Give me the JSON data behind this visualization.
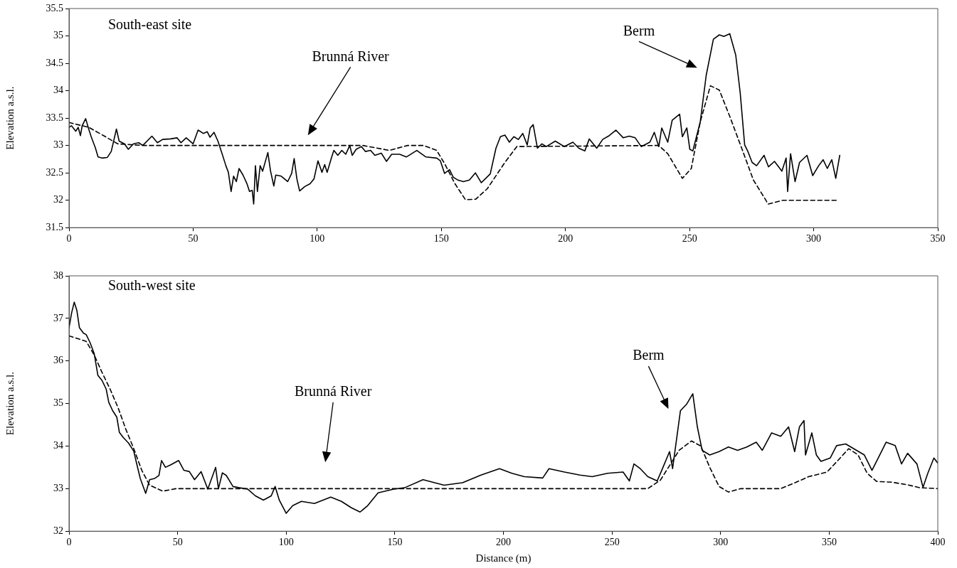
{
  "chart_data": [
    {
      "type": "line",
      "ylabel": "Elevation a.s.l.",
      "xlim": [
        0,
        350
      ],
      "xticks": [
        0,
        50,
        100,
        150,
        200,
        250,
        300,
        350
      ],
      "ylim": [
        31.5,
        35.5
      ],
      "yticks": [
        31.5,
        32,
        32.5,
        33,
        33.5,
        34,
        34.5,
        35,
        35.5
      ],
      "legend": false,
      "marker": "none",
      "annotations": [
        "South-east site",
        "Brunná River",
        "Berm"
      ],
      "series": [
        {
          "color": "#000000",
          "line_style": "solid",
          "x": [
            0,
            1,
            2.7,
            3.7,
            4.6,
            5.3,
            6.7,
            8,
            9,
            10.6,
            11.7,
            13.3,
            15.4,
            17,
            19.1,
            20.2,
            22.3,
            23.9,
            26,
            28.1,
            29.7,
            33.4,
            35.6,
            37.7,
            40.9,
            43.5,
            45.1,
            47.2,
            50,
            52,
            54.1,
            55.7,
            56.8,
            58.4,
            60,
            61.6,
            63.2,
            64.2,
            65.3,
            66.3,
            67.4,
            68.5,
            70.1,
            71.7,
            72.7,
            73.8,
            74.4,
            75.1,
            75.9,
            77,
            78,
            80.1,
            81.2,
            82.5,
            83.3,
            85.5,
            88.1,
            89.7,
            90.7,
            91.8,
            92.9,
            95,
            97.1,
            98.7,
            100.3,
            101.9,
            103,
            104,
            105.7,
            106.7,
            108.3,
            109.9,
            111.5,
            113.1,
            114.1,
            115.7,
            117.8,
            119.4,
            121.5,
            123.2,
            125.8,
            127.9,
            130,
            133.2,
            135.9,
            140.1,
            143.8,
            148.1,
            149.6,
            151.3,
            153.3,
            154.8,
            156.6,
            158.9,
            161.3,
            163.7,
            166.1,
            169.7,
            172,
            173.8,
            175.6,
            177.4,
            179.2,
            181,
            182.8,
            184.6,
            185.8,
            187,
            188.7,
            190.5,
            192.3,
            195.9,
            199.5,
            203,
            205.4,
            207.8,
            209.6,
            212.6,
            215,
            217.3,
            220.3,
            223.3,
            225.7,
            228.1,
            230.5,
            234,
            235.8,
            237.6,
            238.8,
            241.2,
            243,
            246,
            247.1,
            248.9,
            250.1,
            251.3,
            254.3,
            256.7,
            259.6,
            262,
            263.8,
            266.2,
            268.6,
            270.4,
            272.2,
            273.4,
            275.2,
            277,
            280,
            281.8,
            284.2,
            287.2,
            288.9,
            289.5,
            290.7,
            292.5,
            294.3,
            297.3,
            299.6,
            302,
            303.8,
            305.5,
            307.3,
            308.9,
            310.5
          ],
          "values": [
            33.33,
            33.36,
            33.26,
            33.33,
            33.18,
            33.36,
            33.49,
            33.29,
            33.15,
            32.96,
            32.79,
            32.77,
            32.78,
            32.89,
            33.3,
            33.08,
            33.03,
            32.93,
            33.03,
            33.05,
            33,
            33.17,
            33.05,
            33.11,
            33.12,
            33.14,
            33.05,
            33.14,
            33.03,
            33.28,
            33.22,
            33.25,
            33.15,
            33.24,
            33.08,
            32.86,
            32.63,
            32.51,
            32.16,
            32.44,
            32.34,
            32.58,
            32.46,
            32.3,
            32.16,
            32.18,
            31.93,
            32.63,
            32.16,
            32.63,
            32.53,
            32.87,
            32.53,
            32.26,
            32.46,
            32.44,
            32.34,
            32.49,
            32.76,
            32.39,
            32.17,
            32.25,
            32.3,
            32.39,
            32.72,
            32.51,
            32.65,
            32.51,
            32.77,
            32.91,
            32.82,
            32.91,
            32.84,
            33,
            32.82,
            32.93,
            32.98,
            32.89,
            32.91,
            32.82,
            32.86,
            32.71,
            32.84,
            32.84,
            32.79,
            32.91,
            32.79,
            32.77,
            32.72,
            32.49,
            32.56,
            32.42,
            32.37,
            32.34,
            32.37,
            32.5,
            32.32,
            32.48,
            32.95,
            33.16,
            33.19,
            33.06,
            33.16,
            33.11,
            33.22,
            33.01,
            33.32,
            33.38,
            32.95,
            33.03,
            32.98,
            33.08,
            32.98,
            33.06,
            32.95,
            32.9,
            33.12,
            32.95,
            33.11,
            33.17,
            33.28,
            33.14,
            33.17,
            33.14,
            32.98,
            33.06,
            33.24,
            32.98,
            33.32,
            33.06,
            33.46,
            33.57,
            33.16,
            33.32,
            32.93,
            32.9,
            33.43,
            34.28,
            34.94,
            35.02,
            34.99,
            35.04,
            34.65,
            33.96,
            33.01,
            32.9,
            32.69,
            32.63,
            32.82,
            32.61,
            32.71,
            32.53,
            32.77,
            32.16,
            32.85,
            32.34,
            32.69,
            32.82,
            32.45,
            32.63,
            32.74,
            32.58,
            32.74,
            32.4,
            32.82
          ]
        },
        {
          "color": "#000000",
          "line_style": "dashed",
          "x": [
            0,
            8,
            14.3,
            19.6,
            30.3,
            118.4,
            129,
            136.4,
            142.8,
            148.1,
            151.3,
            155.5,
            159.7,
            163.9,
            168.5,
            175.6,
            180.4,
            237.6,
            241.2,
            247.1,
            250.7,
            254.3,
            258.4,
            262,
            266.2,
            271,
            275.7,
            281.7,
            287.6,
            310
          ],
          "values": [
            33.42,
            33.33,
            33.17,
            33.03,
            33,
            33,
            32.91,
            33,
            33,
            32.91,
            32.67,
            32.3,
            32.01,
            32.02,
            32.21,
            32.69,
            32.98,
            33,
            32.85,
            32.4,
            32.58,
            33.43,
            34.09,
            34.01,
            33.53,
            32.95,
            32.37,
            31.93,
            32,
            32
          ]
        }
      ]
    },
    {
      "type": "line",
      "xlabel": "Distance (m)",
      "ylabel": "Elevation a.s.l.",
      "xlim": [
        0,
        400
      ],
      "xticks": [
        0,
        50,
        100,
        150,
        200,
        250,
        300,
        350,
        400
      ],
      "ylim": [
        32,
        38
      ],
      "yticks": [
        32,
        33,
        34,
        35,
        36,
        37,
        38
      ],
      "legend": false,
      "marker": "none",
      "annotations": [
        "South-west site",
        "Brunná River",
        "Berm"
      ],
      "series": [
        {
          "color": "#000000",
          "line_style": "solid",
          "x": [
            0,
            1.2,
            2.4,
            3.6,
            4.8,
            6.7,
            7.9,
            9.7,
            11.6,
            13.3,
            15.2,
            17.1,
            18.3,
            20.1,
            22,
            23.2,
            25,
            27.4,
            29.8,
            31,
            32.8,
            35.3,
            37.1,
            39.5,
            41.4,
            42.6,
            44.4,
            46.9,
            50.5,
            52.9,
            55.4,
            57.8,
            60.8,
            63.9,
            67.5,
            68.8,
            70.6,
            72.4,
            75.5,
            78.5,
            82.2,
            85.8,
            89.5,
            93.1,
            94.9,
            96.8,
            100,
            103,
            107,
            113,
            120.5,
            125.4,
            130,
            134,
            137.5,
            142.3,
            149.6,
            154.5,
            163,
            172.7,
            181.2,
            189.7,
            198.2,
            203.9,
            209.6,
            218.1,
            221,
            228.1,
            235.2,
            240.9,
            248,
            255.1,
            258,
            260.1,
            263,
            266.5,
            270.8,
            272.9,
            276.5,
            277.9,
            281.5,
            284.3,
            287.2,
            289.3,
            291.5,
            295,
            299.3,
            303.6,
            307.8,
            312.1,
            316.4,
            319.2,
            323.5,
            327.7,
            331.3,
            334.1,
            336.3,
            338.4,
            339.1,
            342,
            344.1,
            346.2,
            350.5,
            353.4,
            357.6,
            361.2,
            366.2,
            369.7,
            372.6,
            376.2,
            380.4,
            383.3,
            386.1,
            390.4,
            393.2,
            395.4,
            398.2,
            400
          ],
          "values": [
            36.78,
            37.13,
            37.38,
            37.19,
            36.78,
            36.65,
            36.62,
            36.43,
            36.17,
            35.66,
            35.54,
            35.34,
            35.03,
            34.83,
            34.68,
            34.32,
            34.2,
            34.07,
            33.88,
            33.62,
            33.24,
            32.89,
            33.21,
            33.24,
            33.31,
            33.66,
            33.5,
            33.56,
            33.66,
            33.43,
            33.4,
            33.21,
            33.4,
            32.99,
            33.5,
            33,
            33.37,
            33.31,
            33.05,
            33.02,
            32.99,
            32.83,
            32.73,
            32.83,
            33.05,
            32.73,
            32.42,
            32.6,
            32.7,
            32.65,
            32.8,
            32.7,
            32.55,
            32.45,
            32.6,
            32.9,
            32.99,
            33.02,
            33.21,
            33.08,
            33.14,
            33.32,
            33.47,
            33.36,
            33.28,
            33.25,
            33.47,
            33.39,
            33.32,
            33.28,
            33.36,
            33.39,
            33.18,
            33.58,
            33.47,
            33.28,
            33.18,
            33.43,
            33.87,
            33.47,
            34.83,
            34.98,
            35.23,
            34.45,
            33.9,
            33.79,
            33.87,
            33.98,
            33.9,
            33.98,
            34.09,
            33.9,
            34.31,
            34.23,
            34.45,
            33.87,
            34.45,
            34.6,
            33.79,
            34.31,
            33.79,
            33.64,
            33.72,
            34.01,
            34.05,
            33.94,
            33.79,
            33.43,
            33.72,
            34.09,
            34.01,
            33.58,
            33.83,
            33.58,
            33.03,
            33.36,
            33.72,
            33.6
          ]
        },
        {
          "color": "#000000",
          "line_style": "dashed",
          "x": [
            0,
            7.9,
            11.6,
            15.2,
            18.9,
            22.6,
            26.2,
            29.8,
            33.5,
            37.1,
            43.2,
            49.3,
            266.5,
            272.3,
            280.9,
            286.6,
            290.9,
            295,
            299.3,
            303.6,
            309.3,
            327.7,
            334.8,
            340.5,
            349,
            354.7,
            359,
            363.3,
            367.5,
            371.8,
            378.9,
            386.1,
            391.8,
            400
          ],
          "values": [
            36.59,
            36.46,
            36.14,
            35.73,
            35.34,
            34.9,
            34.39,
            33.94,
            33.43,
            33.08,
            32.94,
            33,
            33,
            33.2,
            33.9,
            34.12,
            34,
            33.5,
            33.05,
            32.92,
            33,
            33,
            33.15,
            33.28,
            33.39,
            33.7,
            33.94,
            33.79,
            33.36,
            33.17,
            33.15,
            33.09,
            33.02,
            33
          ]
        }
      ]
    }
  ]
}
